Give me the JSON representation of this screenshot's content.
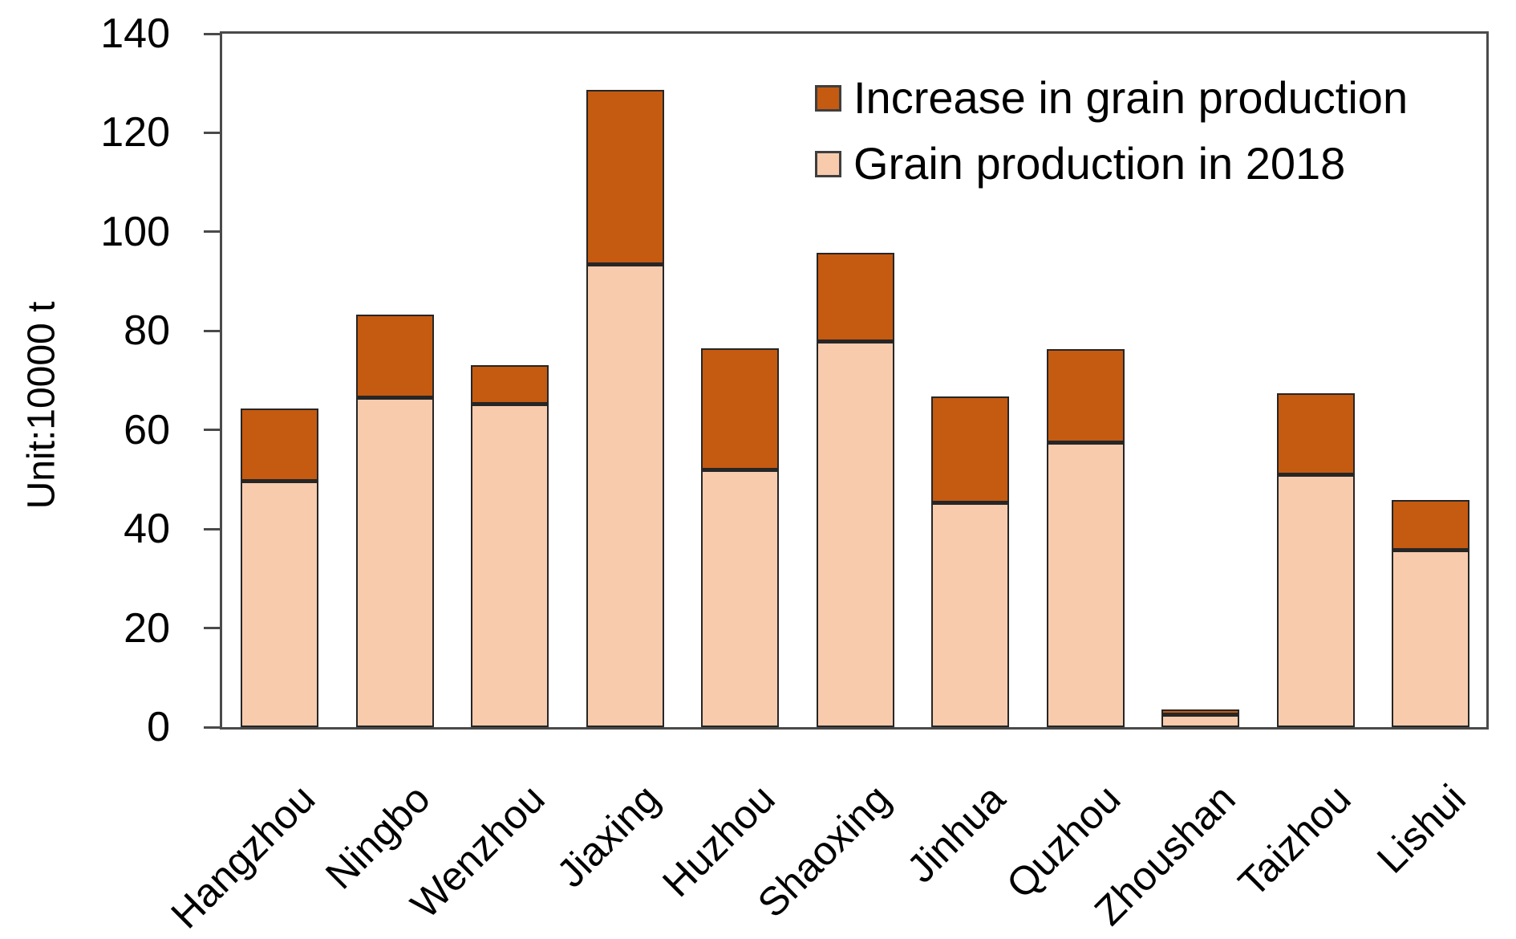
{
  "chart_data": {
    "type": "bar",
    "stacked": true,
    "title": "",
    "xlabel": "",
    "ylabel": "Unit:10000 t",
    "ylim": [
      0,
      140
    ],
    "y_ticks": [
      0,
      20,
      40,
      60,
      80,
      100,
      120,
      140
    ],
    "grid": false,
    "legend_position": "top-right-inside",
    "categories": [
      "Hangzhou",
      "Ningbo",
      "Wenzhou",
      "Jiaxing",
      "Huzhou",
      "Shaoxing",
      "Jinhua",
      "Quzhou",
      "Zhoushan",
      "Taizhou",
      "Lishui"
    ],
    "series": [
      {
        "name": "Grain production in 2018",
        "color": "#F8CBAD",
        "values": [
          49.6,
          66.4,
          65.1,
          93.4,
          51.9,
          77.8,
          45.2,
          57.3,
          2.5,
          50.9,
          35.7
        ]
      },
      {
        "name": "Increase in grain production",
        "color": "#C55A11",
        "values": [
          14.7,
          16.9,
          8.0,
          35.3,
          24.6,
          18.0,
          21.6,
          18.9,
          1.1,
          16.5,
          10.2
        ]
      }
    ],
    "stack_totals": [
      64.3,
      83.3,
      73.1,
      128.7,
      76.5,
      95.8,
      66.8,
      76.2,
      3.6,
      67.4,
      45.9
    ]
  },
  "legend": {
    "items": [
      {
        "label": "Increase in grain production",
        "color": "#C55A11"
      },
      {
        "label": "Grain production in 2018",
        "color": "#F8CBAD"
      }
    ]
  },
  "axis": {
    "ylabel": "Unit:10000 t",
    "line_color": "#4a4a4a",
    "bar_border_color": "#262626",
    "text_color": "#000000"
  }
}
